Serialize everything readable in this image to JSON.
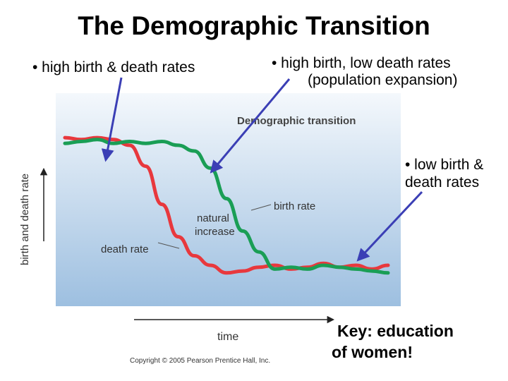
{
  "title": "The Demographic Transition",
  "bullets": {
    "stage1": "• high birth & death rates",
    "stage2_line1": "• high birth, low death rates",
    "stage2_line2": "(population expansion)",
    "stage3_line1": "• low birth &",
    "stage3_line2": "death rates"
  },
  "key": {
    "line1": "Key: education",
    "line2": "of women!"
  },
  "figure": {
    "heading": "Demographic transition",
    "y_axis_label": "birth and death rate",
    "x_axis_label": "time",
    "birth_rate_label": "birth rate",
    "death_rate_label": "death rate",
    "natural_increase_line1": "natural",
    "natural_increase_line2": "increase",
    "copyright": "Copyright © 2005 Pearson Prentice Hall, Inc."
  },
  "colors": {
    "birth_rate": "#1a9e55",
    "death_rate": "#e8383d",
    "arrow": "#3b3fb5",
    "panel_top": "#f4f8fc",
    "panel_bottom": "#9dbfe0"
  },
  "chart_data": {
    "type": "line",
    "x": [
      0,
      5,
      10,
      15,
      20,
      25,
      30,
      35,
      40,
      45,
      50,
      55,
      60,
      65,
      70,
      75,
      80,
      85,
      90,
      95,
      100
    ],
    "series": [
      {
        "name": "birth rate",
        "values": [
          84,
          85,
          86,
          84,
          85,
          84,
          85,
          83,
          80,
          71,
          55,
          38,
          27,
          18,
          19,
          18,
          20,
          19,
          18,
          17,
          16
        ]
      },
      {
        "name": "death rate",
        "values": [
          87,
          86,
          87,
          86,
          83,
          72,
          52,
          35,
          25,
          20,
          16,
          17,
          19,
          20,
          18,
          19,
          21,
          19,
          20,
          18,
          20
        ]
      }
    ],
    "xlabel": "time",
    "ylabel": "birth and death rate",
    "xlim": [
      0,
      100
    ],
    "ylim": [
      0,
      100
    ],
    "grid": false
  }
}
